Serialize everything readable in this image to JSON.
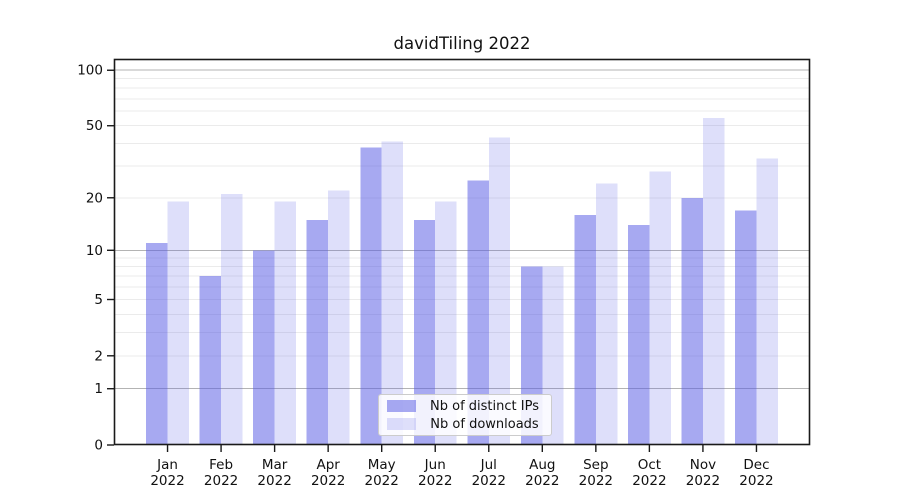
{
  "chart_data": {
    "type": "bar",
    "title": "davidTiling 2022",
    "year_label": "2022",
    "categories": [
      "Jan",
      "Feb",
      "Mar",
      "Apr",
      "May",
      "Jun",
      "Jul",
      "Aug",
      "Sep",
      "Oct",
      "Nov",
      "Dec"
    ],
    "series": [
      {
        "key": "ips",
        "name": "Nb of distinct IPs",
        "values": [
          11,
          7,
          10,
          15,
          38,
          15,
          25,
          8,
          16,
          14,
          20,
          17
        ]
      },
      {
        "key": "downloads",
        "name": "Nb of downloads",
        "values": [
          19,
          21,
          19,
          22,
          41,
          19,
          43,
          8,
          24,
          28,
          55,
          33
        ]
      }
    ],
    "xlabel": "",
    "ylabel": "",
    "yscale": "log1p",
    "ylim": [
      0,
      115
    ],
    "yticks": [
      0,
      1,
      2,
      5,
      10,
      20,
      50,
      100
    ],
    "gridlines": {
      "strong": [
        1,
        10,
        100
      ],
      "light": [
        2,
        3,
        4,
        5,
        6,
        7,
        8,
        9,
        20,
        30,
        40,
        50,
        60,
        70,
        80,
        90
      ]
    },
    "legend_position": "lower center",
    "colors": {
      "ips": "rgba(86, 91, 229, 0.52)",
      "downloads": "rgba(88, 93, 230, 0.20)",
      "grid_strong": "#b3b3b3",
      "grid_light": "#ebebeb",
      "axis": "#1a1a1a",
      "text": "#111111"
    }
  }
}
